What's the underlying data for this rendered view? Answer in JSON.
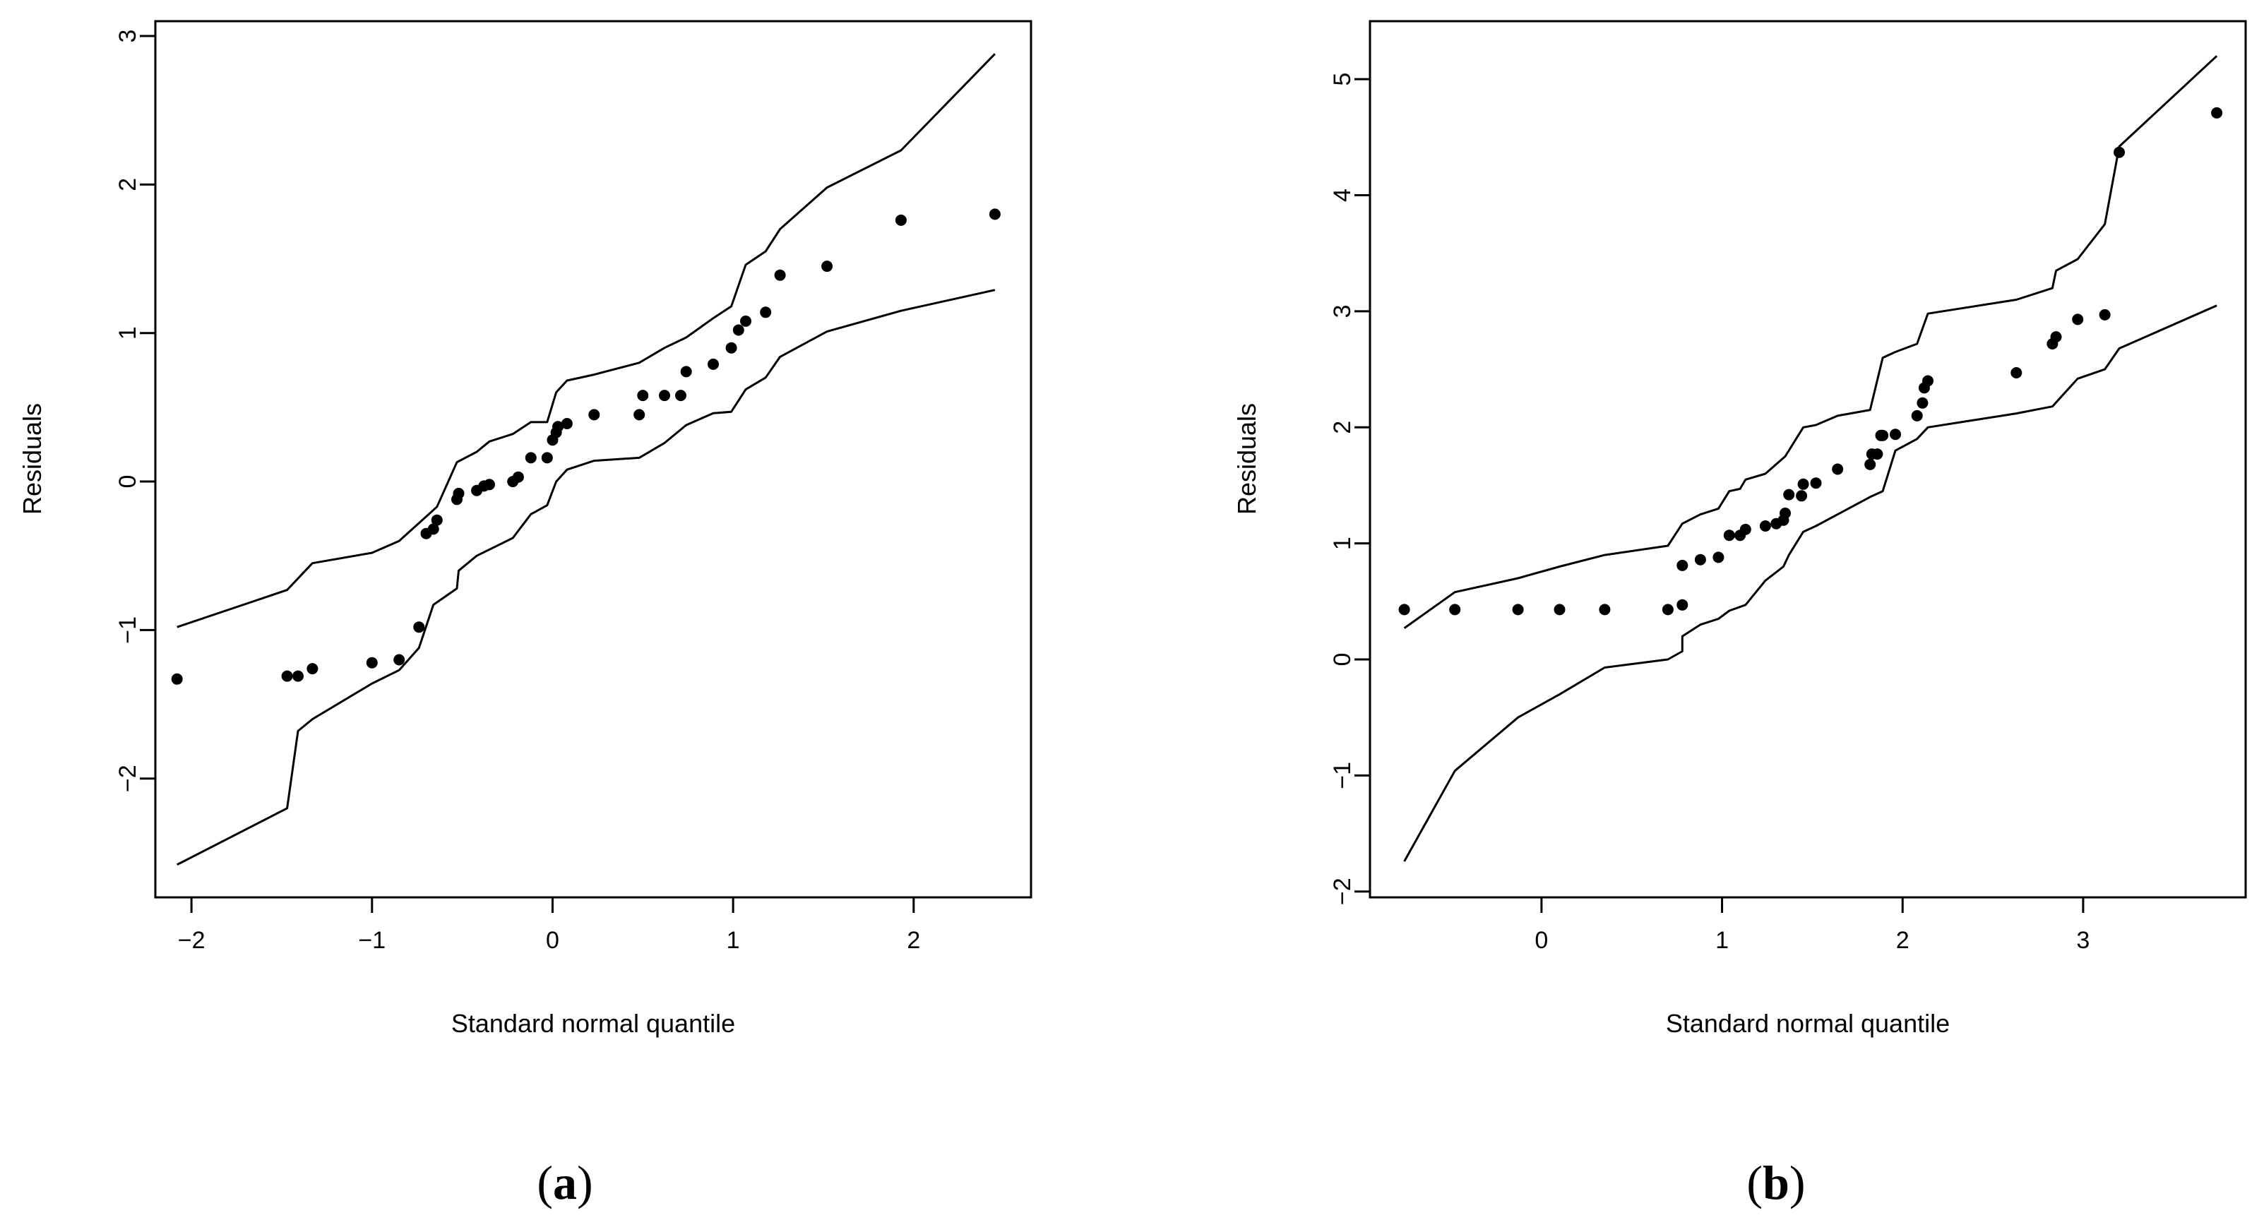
{
  "chart_data": [
    {
      "type": "scatter",
      "panel_label_open": "(",
      "panel_label_letter": "a",
      "panel_label_close": ")",
      "xlabel": "Standard normal quantile",
      "ylabel": "Residuals",
      "xlim": [
        -2.2,
        2.65
      ],
      "ylim": [
        -2.8,
        3.1
      ],
      "xticks": [
        -2,
        -1,
        0,
        1,
        2
      ],
      "xtick_labels": [
        "−2",
        "−1",
        "0",
        "1",
        "2"
      ],
      "yticks": [
        -2,
        -1,
        0,
        1,
        2,
        3
      ],
      "ytick_labels": [
        "−2",
        "−1",
        "0",
        "1",
        "2",
        "3"
      ],
      "points": [
        [
          -2.08,
          -1.33
        ],
        [
          -1.47,
          -1.31
        ],
        [
          -1.41,
          -1.31
        ],
        [
          -1.33,
          -1.26
        ],
        [
          -1.0,
          -1.22
        ],
        [
          -0.85,
          -1.2
        ],
        [
          -0.74,
          -0.98
        ],
        [
          -0.7,
          -0.35
        ],
        [
          -0.66,
          -0.32
        ],
        [
          -0.64,
          -0.26
        ],
        [
          -0.53,
          -0.12
        ],
        [
          -0.52,
          -0.08
        ],
        [
          -0.42,
          -0.06
        ],
        [
          -0.38,
          -0.03
        ],
        [
          -0.35,
          -0.02
        ],
        [
          -0.22,
          0.0
        ],
        [
          -0.19,
          0.03
        ],
        [
          -0.12,
          0.16
        ],
        [
          -0.03,
          0.16
        ],
        [
          0.0,
          0.28
        ],
        [
          0.02,
          0.33
        ],
        [
          0.03,
          0.37
        ],
        [
          0.08,
          0.39
        ],
        [
          0.23,
          0.45
        ],
        [
          0.48,
          0.45
        ],
        [
          0.5,
          0.58
        ],
        [
          0.62,
          0.58
        ],
        [
          0.71,
          0.58
        ],
        [
          0.74,
          0.74
        ],
        [
          0.89,
          0.79
        ],
        [
          0.99,
          0.9
        ],
        [
          1.03,
          1.02
        ],
        [
          1.07,
          1.08
        ],
        [
          1.18,
          1.14
        ],
        [
          1.26,
          1.39
        ],
        [
          1.52,
          1.45
        ],
        [
          1.93,
          1.76
        ],
        [
          2.45,
          1.8
        ]
      ],
      "upper_band": [
        [
          -2.08,
          -0.98
        ],
        [
          -1.47,
          -0.73
        ],
        [
          -1.33,
          -0.55
        ],
        [
          -1.0,
          -0.48
        ],
        [
          -0.85,
          -0.4
        ],
        [
          -0.74,
          -0.28
        ],
        [
          -0.64,
          -0.17
        ],
        [
          -0.53,
          0.13
        ],
        [
          -0.42,
          0.2
        ],
        [
          -0.35,
          0.27
        ],
        [
          -0.22,
          0.32
        ],
        [
          -0.12,
          0.4
        ],
        [
          -0.03,
          0.4
        ],
        [
          0.02,
          0.6
        ],
        [
          0.08,
          0.68
        ],
        [
          0.23,
          0.72
        ],
        [
          0.48,
          0.8
        ],
        [
          0.62,
          0.9
        ],
        [
          0.74,
          0.97
        ],
        [
          0.89,
          1.1
        ],
        [
          0.99,
          1.18
        ],
        [
          1.07,
          1.46
        ],
        [
          1.18,
          1.55
        ],
        [
          1.26,
          1.7
        ],
        [
          1.52,
          1.98
        ],
        [
          1.93,
          2.23
        ],
        [
          2.45,
          2.88
        ]
      ],
      "lower_band": [
        [
          -2.08,
          -2.58
        ],
        [
          -1.47,
          -2.2
        ],
        [
          -1.41,
          -1.68
        ],
        [
          -1.33,
          -1.6
        ],
        [
          -1.0,
          -1.36
        ],
        [
          -0.85,
          -1.27
        ],
        [
          -0.74,
          -1.12
        ],
        [
          -0.66,
          -0.83
        ],
        [
          -0.53,
          -0.72
        ],
        [
          -0.52,
          -0.6
        ],
        [
          -0.42,
          -0.5
        ],
        [
          -0.22,
          -0.38
        ],
        [
          -0.12,
          -0.22
        ],
        [
          -0.03,
          -0.16
        ],
        [
          0.02,
          0.0
        ],
        [
          0.08,
          0.08
        ],
        [
          0.23,
          0.14
        ],
        [
          0.48,
          0.16
        ],
        [
          0.62,
          0.26
        ],
        [
          0.74,
          0.38
        ],
        [
          0.89,
          0.46
        ],
        [
          0.99,
          0.47
        ],
        [
          1.07,
          0.62
        ],
        [
          1.18,
          0.7
        ],
        [
          1.26,
          0.84
        ],
        [
          1.52,
          1.01
        ],
        [
          1.93,
          1.15
        ],
        [
          2.45,
          1.29
        ]
      ]
    },
    {
      "type": "scatter",
      "panel_label_open": "(",
      "panel_label_letter": "b",
      "panel_label_close": ")",
      "xlabel": "Standard normal quantile",
      "ylabel": "Residuals",
      "xlim": [
        -0.95,
        3.9
      ],
      "ylim": [
        -2.05,
        5.5
      ],
      "xticks": [
        0,
        1,
        2,
        3
      ],
      "xtick_labels": [
        "0",
        "1",
        "2",
        "3"
      ],
      "yticks": [
        -2,
        -1,
        0,
        1,
        2,
        3,
        4,
        5
      ],
      "ytick_labels": [
        "−2",
        "−1",
        "0",
        "1",
        "2",
        "3",
        "4",
        "5"
      ],
      "points": [
        [
          -0.76,
          0.43
        ],
        [
          -0.48,
          0.43
        ],
        [
          -0.13,
          0.43
        ],
        [
          0.1,
          0.43
        ],
        [
          0.35,
          0.43
        ],
        [
          0.7,
          0.43
        ],
        [
          0.78,
          0.47
        ],
        [
          0.78,
          0.81
        ],
        [
          0.88,
          0.86
        ],
        [
          0.98,
          0.88
        ],
        [
          1.04,
          1.07
        ],
        [
          1.1,
          1.07
        ],
        [
          1.13,
          1.12
        ],
        [
          1.24,
          1.15
        ],
        [
          1.3,
          1.17
        ],
        [
          1.34,
          1.2
        ],
        [
          1.35,
          1.26
        ],
        [
          1.37,
          1.42
        ],
        [
          1.44,
          1.41
        ],
        [
          1.45,
          1.51
        ],
        [
          1.52,
          1.52
        ],
        [
          1.64,
          1.64
        ],
        [
          1.82,
          1.68
        ],
        [
          1.83,
          1.77
        ],
        [
          1.86,
          1.77
        ],
        [
          1.88,
          1.93
        ],
        [
          1.89,
          1.93
        ],
        [
          1.96,
          1.94
        ],
        [
          2.08,
          2.1
        ],
        [
          2.11,
          2.21
        ],
        [
          2.12,
          2.34
        ],
        [
          2.14,
          2.4
        ],
        [
          2.63,
          2.47
        ],
        [
          2.83,
          2.72
        ],
        [
          2.85,
          2.78
        ],
        [
          2.97,
          2.93
        ],
        [
          3.12,
          2.97
        ],
        [
          3.2,
          4.37
        ],
        [
          3.74,
          4.71
        ]
      ],
      "upper_band": [
        [
          -0.76,
          0.27
        ],
        [
          -0.48,
          0.58
        ],
        [
          -0.13,
          0.7
        ],
        [
          0.1,
          0.8
        ],
        [
          0.35,
          0.9
        ],
        [
          0.7,
          0.98
        ],
        [
          0.78,
          1.17
        ],
        [
          0.88,
          1.25
        ],
        [
          0.98,
          1.3
        ],
        [
          1.04,
          1.45
        ],
        [
          1.1,
          1.47
        ],
        [
          1.13,
          1.55
        ],
        [
          1.24,
          1.6
        ],
        [
          1.35,
          1.75
        ],
        [
          1.45,
          2.0
        ],
        [
          1.52,
          2.02
        ],
        [
          1.64,
          2.1
        ],
        [
          1.82,
          2.15
        ],
        [
          1.89,
          2.6
        ],
        [
          1.96,
          2.65
        ],
        [
          2.08,
          2.72
        ],
        [
          2.14,
          2.98
        ],
        [
          2.63,
          3.1
        ],
        [
          2.83,
          3.2
        ],
        [
          2.85,
          3.35
        ],
        [
          2.97,
          3.45
        ],
        [
          3.12,
          3.75
        ],
        [
          3.2,
          4.42
        ],
        [
          3.74,
          5.2
        ]
      ],
      "lower_band": [
        [
          -0.76,
          -1.74
        ],
        [
          -0.48,
          -0.96
        ],
        [
          -0.13,
          -0.5
        ],
        [
          0.1,
          -0.3
        ],
        [
          0.35,
          -0.07
        ],
        [
          0.7,
          0.0
        ],
        [
          0.78,
          0.07
        ],
        [
          0.78,
          0.2
        ],
        [
          0.88,
          0.3
        ],
        [
          0.98,
          0.35
        ],
        [
          1.04,
          0.42
        ],
        [
          1.13,
          0.47
        ],
        [
          1.24,
          0.68
        ],
        [
          1.34,
          0.8
        ],
        [
          1.37,
          0.9
        ],
        [
          1.45,
          1.1
        ],
        [
          1.52,
          1.15
        ],
        [
          1.64,
          1.25
        ],
        [
          1.82,
          1.4
        ],
        [
          1.89,
          1.45
        ],
        [
          1.96,
          1.8
        ],
        [
          2.08,
          1.9
        ],
        [
          2.14,
          2.0
        ],
        [
          2.63,
          2.12
        ],
        [
          2.83,
          2.18
        ],
        [
          2.97,
          2.42
        ],
        [
          3.12,
          2.5
        ],
        [
          3.2,
          2.68
        ],
        [
          3.74,
          3.05
        ]
      ]
    }
  ]
}
